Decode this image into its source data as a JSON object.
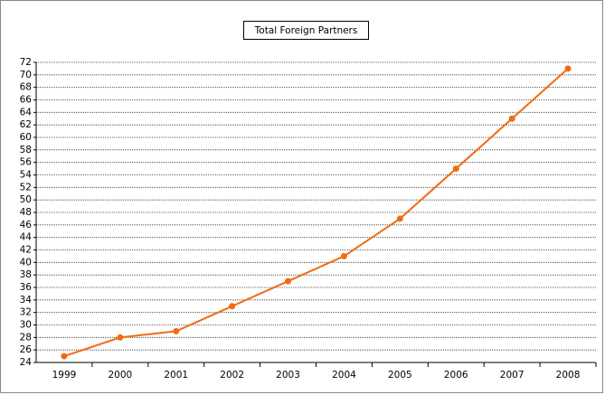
{
  "chart_data": {
    "type": "line",
    "title": "Total Foreign Partners",
    "categories": [
      "1999",
      "2000",
      "2001",
      "2002",
      "2003",
      "2004",
      "2005",
      "2006",
      "2007",
      "2008"
    ],
    "series": [
      {
        "name": "Total Foreign Partners",
        "color": "#f26a12",
        "values": [
          25,
          28,
          29,
          33,
          37,
          41,
          47,
          55,
          63,
          71
        ]
      }
    ],
    "ylim": [
      24,
      72
    ],
    "yticks": [
      24,
      26,
      28,
      30,
      32,
      34,
      36,
      38,
      40,
      42,
      44,
      46,
      48,
      50,
      52,
      54,
      56,
      58,
      60,
      62,
      64,
      66,
      68,
      70,
      72
    ],
    "grid": true
  }
}
